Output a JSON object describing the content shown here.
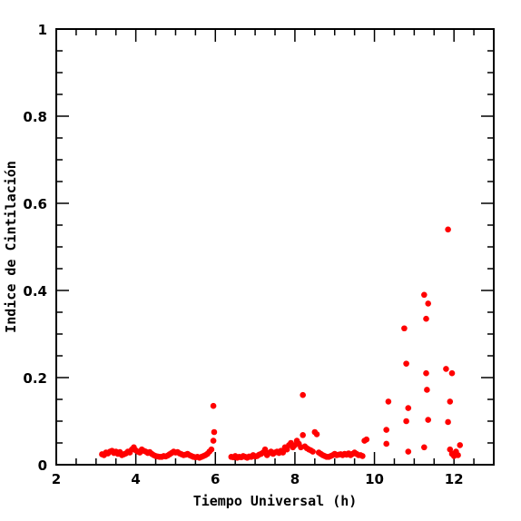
{
  "chart_data": {
    "type": "scatter",
    "xlabel": "Tiempo Universal (h)",
    "ylabel": "Indice de Cintilación",
    "xlim": [
      2,
      13
    ],
    "ylim": [
      0,
      1
    ],
    "x_ticks": [
      2,
      4,
      6,
      8,
      10,
      12
    ],
    "y_ticks": [
      0,
      0.2,
      0.4,
      0.6,
      0.8,
      1
    ],
    "x_tick_labels": [
      "2",
      "4",
      "6",
      "8",
      "10",
      "12"
    ],
    "y_tick_labels": [
      "0",
      "0.2",
      "0.4",
      "0.6",
      "0.8",
      "1"
    ],
    "grid": false,
    "marker_color": "#ff0000",
    "series": [
      {
        "points": [
          [
            3.15,
            0.024
          ],
          [
            3.2,
            0.022
          ],
          [
            3.25,
            0.028
          ],
          [
            3.3,
            0.026
          ],
          [
            3.35,
            0.03
          ],
          [
            3.4,
            0.032
          ],
          [
            3.45,
            0.027
          ],
          [
            3.5,
            0.03
          ],
          [
            3.55,
            0.025
          ],
          [
            3.6,
            0.029
          ],
          [
            3.65,
            0.022
          ],
          [
            3.7,
            0.024
          ],
          [
            3.75,
            0.026
          ],
          [
            3.8,
            0.03
          ],
          [
            3.85,
            0.028
          ],
          [
            3.9,
            0.035
          ],
          [
            3.95,
            0.04
          ],
          [
            4.0,
            0.033
          ],
          [
            4.05,
            0.03
          ],
          [
            4.1,
            0.028
          ],
          [
            4.15,
            0.035
          ],
          [
            4.2,
            0.032
          ],
          [
            4.25,
            0.03
          ],
          [
            4.3,
            0.027
          ],
          [
            4.35,
            0.029
          ],
          [
            4.4,
            0.025
          ],
          [
            4.45,
            0.022
          ],
          [
            4.5,
            0.02
          ],
          [
            4.55,
            0.019
          ],
          [
            4.6,
            0.018
          ],
          [
            4.65,
            0.018
          ],
          [
            4.7,
            0.02
          ],
          [
            4.75,
            0.019
          ],
          [
            4.8,
            0.021
          ],
          [
            4.85,
            0.024
          ],
          [
            4.9,
            0.027
          ],
          [
            4.95,
            0.03
          ],
          [
            5.0,
            0.028
          ],
          [
            5.05,
            0.029
          ],
          [
            5.1,
            0.026
          ],
          [
            5.15,
            0.024
          ],
          [
            5.2,
            0.022
          ],
          [
            5.25,
            0.023
          ],
          [
            5.3,
            0.025
          ],
          [
            5.35,
            0.022
          ],
          [
            5.4,
            0.02
          ],
          [
            5.45,
            0.018
          ],
          [
            5.5,
            0.017
          ],
          [
            5.55,
            0.018
          ],
          [
            5.6,
            0.016
          ],
          [
            5.65,
            0.018
          ],
          [
            5.7,
            0.02
          ],
          [
            5.75,
            0.022
          ],
          [
            5.8,
            0.025
          ],
          [
            5.85,
            0.03
          ],
          [
            5.9,
            0.035
          ],
          [
            5.95,
            0.055
          ],
          [
            5.97,
            0.075
          ],
          [
            5.95,
            0.135
          ],
          [
            6.4,
            0.018
          ],
          [
            6.45,
            0.017
          ],
          [
            6.5,
            0.02
          ],
          [
            6.55,
            0.016
          ],
          [
            6.6,
            0.018
          ],
          [
            6.65,
            0.017
          ],
          [
            6.7,
            0.02
          ],
          [
            6.75,
            0.018
          ],
          [
            6.8,
            0.016
          ],
          [
            6.85,
            0.019
          ],
          [
            6.9,
            0.018
          ],
          [
            6.95,
            0.022
          ],
          [
            7.0,
            0.019
          ],
          [
            7.05,
            0.02
          ],
          [
            7.1,
            0.023
          ],
          [
            7.15,
            0.025
          ],
          [
            7.2,
            0.028
          ],
          [
            7.25,
            0.035
          ],
          [
            7.3,
            0.022
          ],
          [
            7.35,
            0.027
          ],
          [
            7.4,
            0.03
          ],
          [
            7.45,
            0.025
          ],
          [
            7.5,
            0.028
          ],
          [
            7.55,
            0.03
          ],
          [
            7.6,
            0.027
          ],
          [
            7.65,
            0.032
          ],
          [
            7.7,
            0.028
          ],
          [
            7.75,
            0.04
          ],
          [
            7.8,
            0.035
          ],
          [
            7.85,
            0.045
          ],
          [
            7.9,
            0.05
          ],
          [
            7.95,
            0.04
          ],
          [
            8.0,
            0.045
          ],
          [
            8.05,
            0.055
          ],
          [
            8.1,
            0.048
          ],
          [
            8.15,
            0.04
          ],
          [
            8.2,
            0.068
          ],
          [
            8.25,
            0.042
          ],
          [
            8.3,
            0.038
          ],
          [
            8.35,
            0.035
          ],
          [
            8.4,
            0.033
          ],
          [
            8.45,
            0.03
          ],
          [
            8.5,
            0.075
          ],
          [
            8.55,
            0.07
          ],
          [
            8.6,
            0.028
          ],
          [
            8.65,
            0.025
          ],
          [
            8.7,
            0.022
          ],
          [
            8.75,
            0.02
          ],
          [
            8.8,
            0.018
          ],
          [
            8.85,
            0.018
          ],
          [
            8.9,
            0.02
          ],
          [
            8.95,
            0.022
          ],
          [
            9.0,
            0.025
          ],
          [
            9.05,
            0.022
          ],
          [
            9.1,
            0.023
          ],
          [
            9.15,
            0.024
          ],
          [
            9.2,
            0.022
          ],
          [
            9.25,
            0.025
          ],
          [
            9.3,
            0.023
          ],
          [
            9.35,
            0.026
          ],
          [
            9.4,
            0.022
          ],
          [
            9.45,
            0.025
          ],
          [
            9.5,
            0.028
          ],
          [
            9.55,
            0.025
          ],
          [
            9.6,
            0.022
          ],
          [
            9.65,
            0.022
          ],
          [
            9.7,
            0.02
          ],
          [
            9.75,
            0.055
          ],
          [
            9.8,
            0.058
          ],
          [
            8.2,
            0.16
          ],
          [
            10.35,
            0.145
          ],
          [
            10.3,
            0.08
          ],
          [
            10.3,
            0.048
          ],
          [
            10.75,
            0.313
          ],
          [
            10.8,
            0.232
          ],
          [
            10.85,
            0.13
          ],
          [
            10.8,
            0.1
          ],
          [
            10.85,
            0.03
          ],
          [
            11.25,
            0.39
          ],
          [
            11.3,
            0.335
          ],
          [
            11.35,
            0.37
          ],
          [
            11.3,
            0.21
          ],
          [
            11.32,
            0.172
          ],
          [
            11.35,
            0.103
          ],
          [
            11.25,
            0.04
          ],
          [
            11.85,
            0.54
          ],
          [
            11.8,
            0.22
          ],
          [
            11.95,
            0.21
          ],
          [
            11.9,
            0.145
          ],
          [
            11.85,
            0.098
          ],
          [
            11.9,
            0.035
          ],
          [
            11.95,
            0.025
          ],
          [
            12.05,
            0.03
          ],
          [
            12.1,
            0.022
          ],
          [
            12.15,
            0.045
          ],
          [
            12.0,
            0.02
          ]
        ]
      }
    ]
  }
}
